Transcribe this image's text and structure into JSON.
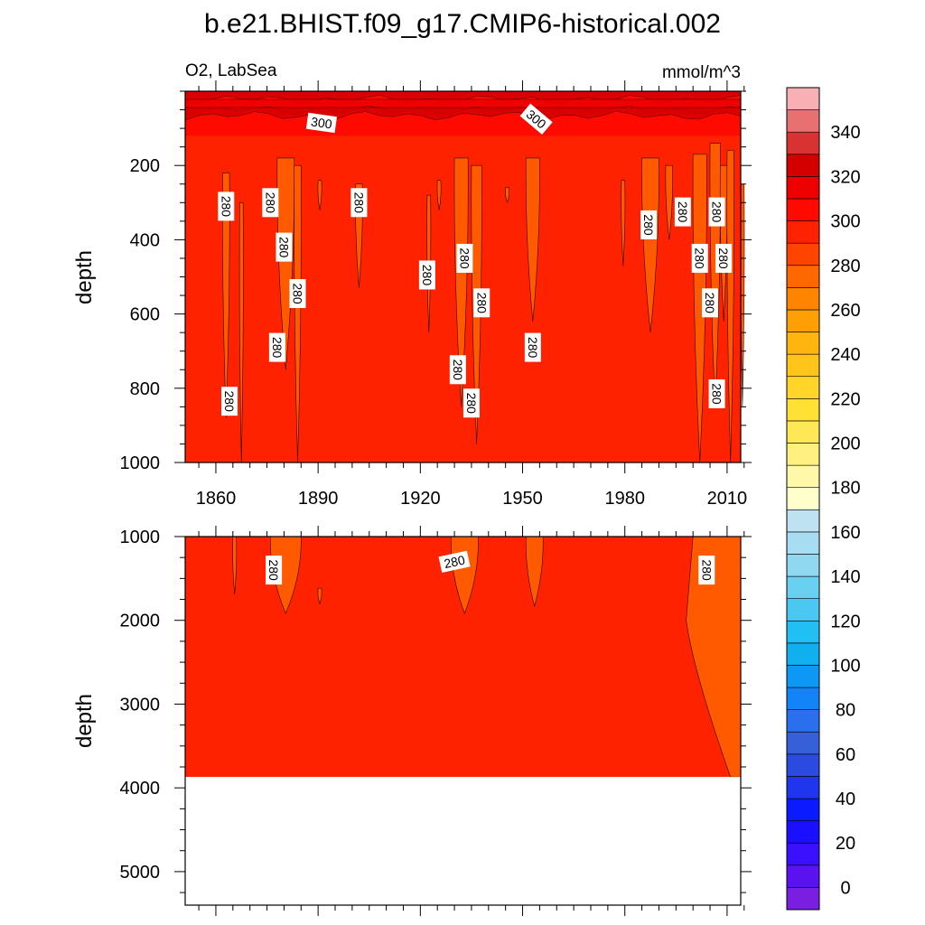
{
  "chart_data": {
    "type": "heatmap",
    "title": "b.e21.BHIST.f09_g17.CMIP6-historical.002",
    "variable_label": "O2, LabSea",
    "units_label": "mmol/m^3",
    "x_ticks": [
      1860,
      1890,
      1920,
      1950,
      1980,
      2010
    ],
    "x_range": [
      1851,
      2014
    ],
    "colorbar": {
      "levels": [
        -10,
        0,
        10,
        20,
        30,
        40,
        50,
        60,
        70,
        80,
        90,
        100,
        110,
        120,
        130,
        140,
        150,
        160,
        170,
        180,
        190,
        200,
        210,
        220,
        230,
        240,
        250,
        260,
        270,
        280,
        290,
        300,
        310,
        320,
        330,
        340,
        350,
        360
      ],
      "tick_labels": [
        "0",
        "20",
        "40",
        "60",
        "80",
        "100",
        "120",
        "140",
        "160",
        "180",
        "200",
        "220",
        "240",
        "260",
        "280",
        "300",
        "320",
        "340"
      ],
      "tick_values": [
        0,
        20,
        40,
        60,
        80,
        100,
        120,
        140,
        160,
        180,
        200,
        220,
        240,
        260,
        280,
        300,
        320,
        340
      ],
      "colors": [
        "#7a1fe0",
        "#5a12f0",
        "#3a10ff",
        "#1a10ff",
        "#0a1cff",
        "#2036ee",
        "#2a4ae0",
        "#3660d8",
        "#2a70ee",
        "#1284f8",
        "#0c98f4",
        "#10aff0",
        "#22bff4",
        "#4ac8f2",
        "#6ad0f0",
        "#90d8f0",
        "#a8dcf0",
        "#bfe2f2",
        "#ffffcc",
        "#fff8a8",
        "#fff080",
        "#ffe855",
        "#ffe035",
        "#ffd52a",
        "#ffc51a",
        "#ffb40e",
        "#ff9f06",
        "#ff8500",
        "#ff6800",
        "#ff4400",
        "#ff2200",
        "#ff0a00",
        "#ee0000",
        "#d40000",
        "#d83232",
        "#e87070",
        "#f8b0b4"
      ]
    },
    "panels": [
      {
        "name": "upper-ocean",
        "ylabel": "depth",
        "y_range": [
          0,
          1000
        ],
        "y_reversed": true,
        "y_ticks": [
          200,
          400,
          600,
          800,
          1000
        ],
        "background_value": 280,
        "background_color": "#ff2200",
        "surface_layer": {
          "depth_range": [
            0,
            120
          ],
          "value": 300,
          "color": "#ff0a00"
        },
        "contour_labels": [
          {
            "text": "300",
            "year": 1891,
            "depth": 85,
            "angle": 8
          },
          {
            "text": "300",
            "year": 1954,
            "depth": 75,
            "angle": 40
          },
          {
            "text": "280",
            "year": 1863,
            "depth": 310,
            "angle": 90
          },
          {
            "text": "280",
            "year": 1876,
            "depth": 300,
            "angle": 90
          },
          {
            "text": "280",
            "year": 1902,
            "depth": 300,
            "angle": 90
          },
          {
            "text": "280",
            "year": 1880,
            "depth": 420,
            "angle": 90
          },
          {
            "text": "280",
            "year": 1884,
            "depth": 545,
            "angle": 90
          },
          {
            "text": "280",
            "year": 1922,
            "depth": 495,
            "angle": 90
          },
          {
            "text": "280",
            "year": 1933,
            "depth": 450,
            "angle": 90
          },
          {
            "text": "280",
            "year": 1938,
            "depth": 570,
            "angle": 90
          },
          {
            "text": "280",
            "year": 1878,
            "depth": 690,
            "angle": 90
          },
          {
            "text": "280",
            "year": 1864,
            "depth": 835,
            "angle": 90
          },
          {
            "text": "280",
            "year": 1931,
            "depth": 750,
            "angle": 90
          },
          {
            "text": "280",
            "year": 1935,
            "depth": 840,
            "angle": 90
          },
          {
            "text": "280",
            "year": 1953,
            "depth": 690,
            "angle": 90
          },
          {
            "text": "280",
            "year": 1987,
            "depth": 360,
            "angle": 90
          },
          {
            "text": "280",
            "year": 1997,
            "depth": 325,
            "angle": 90
          },
          {
            "text": "280",
            "year": 2007,
            "depth": 325,
            "angle": 90
          },
          {
            "text": "280",
            "year": 2002,
            "depth": 450,
            "angle": 90
          },
          {
            "text": "280",
            "year": 2009,
            "depth": 450,
            "angle": 90
          },
          {
            "text": "280",
            "year": 2005,
            "depth": 570,
            "angle": 90
          },
          {
            "text": "280",
            "year": 2007,
            "depth": 815,
            "angle": 90
          }
        ]
      },
      {
        "name": "deep-ocean",
        "ylabel": "depth",
        "y_range": [
          1000,
          5400
        ],
        "y_reversed": true,
        "y_ticks": [
          1000,
          2000,
          3000,
          4000,
          5000
        ],
        "background_value": 280,
        "background_color": "#ff2200",
        "data_bottom_depth": 3870,
        "contour_labels": [
          {
            "text": "280",
            "year": 1877,
            "depth": 1400,
            "angle": 90
          },
          {
            "text": "280",
            "year": 1930,
            "depth": 1300,
            "angle": -12
          },
          {
            "text": "280",
            "year": 2004,
            "depth": 1400,
            "angle": 90
          }
        ]
      }
    ]
  }
}
